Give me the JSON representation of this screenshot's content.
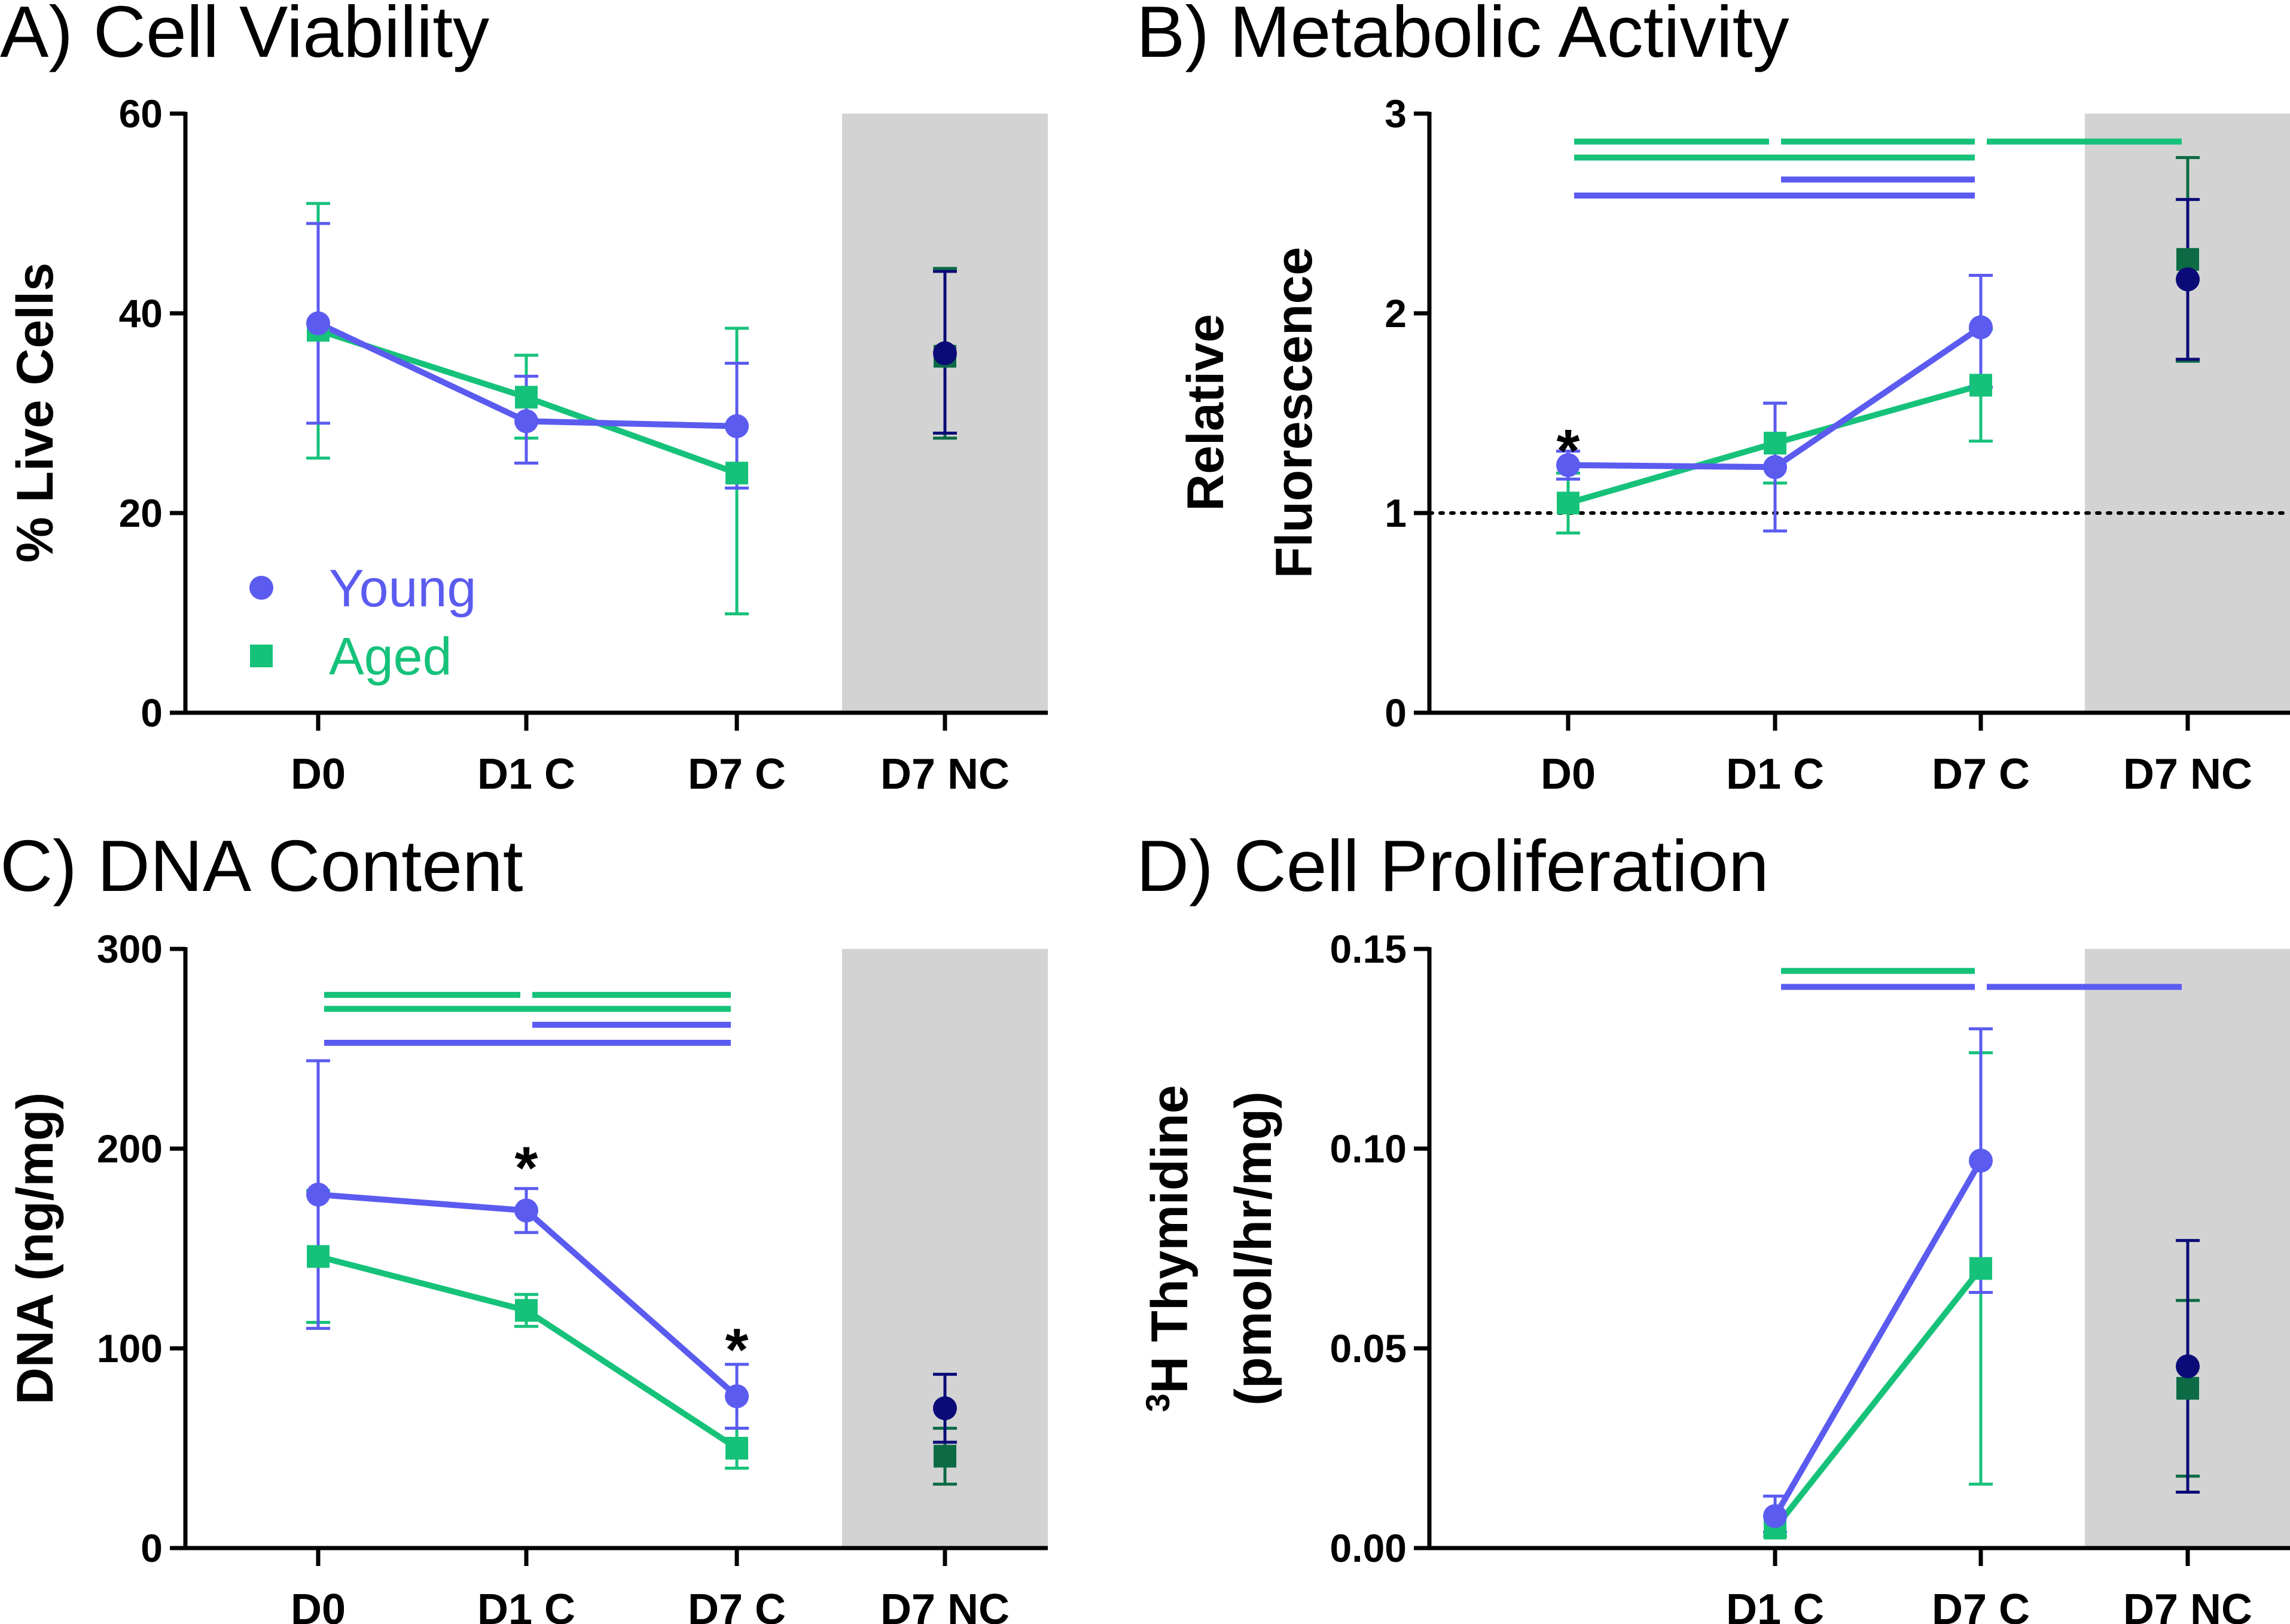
{
  "colors": {
    "young": "#5B5BF0",
    "aged": "#16C27A",
    "young_nc": "#0B0B78",
    "aged_nc": "#0C6B45",
    "shade": "#D3D3D3"
  },
  "chart_data": [
    {
      "type": "line",
      "title": "A) Cell Viability",
      "ylabel": "% Live Cells",
      "ylim": [
        0,
        60
      ],
      "yticks": [
        0,
        20,
        40,
        60
      ],
      "categories": [
        "D0",
        "D1 C",
        "D7 C",
        "D7 NC"
      ],
      "shaded_category": "D7 NC",
      "grid": false,
      "legend": {
        "placement": "bottom-left",
        "entries": [
          "Young",
          "Aged"
        ]
      },
      "series": [
        {
          "name": "Young",
          "marker": "circle",
          "values": [
            39,
            29.2,
            28.7,
            36
          ],
          "err_low": [
            29,
            25,
            22.5,
            28
          ],
          "err_high": [
            49,
            33.7,
            35,
            44.2
          ]
        },
        {
          "name": "Aged",
          "marker": "square",
          "values": [
            38.3,
            31.6,
            24,
            35.7
          ],
          "err_low": [
            25.5,
            27.5,
            9.9,
            27.5
          ],
          "err_high": [
            51,
            35.8,
            38.5,
            44.5
          ]
        }
      ],
      "annotations": [],
      "sig_bars": []
    },
    {
      "type": "line",
      "title": "B) Metabolic Activity",
      "ylabel": "Relative Fluorescence",
      "ylabel_lines": [
        "Relative",
        "Fluorescence"
      ],
      "ylim": [
        0,
        3
      ],
      "yticks": [
        0,
        1,
        2,
        3
      ],
      "categories": [
        "D0",
        "D1 C",
        "D7 C",
        "D7 NC"
      ],
      "shaded_category": "D7 NC",
      "grid": false,
      "reference_line": 1,
      "series": [
        {
          "name": "Young",
          "marker": "circle",
          "values": [
            1.24,
            1.23,
            1.93,
            2.17
          ],
          "err_low": [
            1.17,
            0.91,
            1.63,
            1.77
          ],
          "err_high": [
            1.31,
            1.55,
            2.19,
            2.57
          ]
        },
        {
          "name": "Aged",
          "marker": "square",
          "values": [
            1.05,
            1.35,
            1.64,
            2.27
          ],
          "err_low": [
            0.9,
            1.15,
            1.36,
            1.76
          ],
          "err_high": [
            1.2,
            1.55,
            1.92,
            2.78
          ]
        }
      ],
      "annotations": [
        {
          "text": "*",
          "category": "D0",
          "y": 1.33
        }
      ],
      "sig_bars": [
        {
          "series": "Aged",
          "from": "D0",
          "to": "D1 C",
          "y": 2.86
        },
        {
          "series": "Aged",
          "from": "D1 C",
          "to": "D7 C",
          "y": 2.86
        },
        {
          "series": "Aged",
          "from": "D7 C",
          "to": "D7 NC",
          "y": 2.86
        },
        {
          "series": "Aged",
          "from": "D0",
          "to": "D7 C",
          "y": 2.78
        },
        {
          "series": "Young",
          "from": "D1 C",
          "to": "D7 C",
          "y": 2.67
        },
        {
          "series": "Young",
          "from": "D0",
          "to": "D7 C",
          "y": 2.59
        }
      ]
    },
    {
      "type": "line",
      "title": "C) DNA Content",
      "ylabel": "DNA (ng/mg)",
      "ylim": [
        0,
        300
      ],
      "yticks": [
        0,
        100,
        200,
        300
      ],
      "categories": [
        "D0",
        "D1 C",
        "D7 C",
        "D7 NC"
      ],
      "shaded_category": "D7 NC",
      "grid": false,
      "series": [
        {
          "name": "Young",
          "marker": "circle",
          "values": [
            177,
            169,
            76,
            70
          ],
          "err_low": [
            110,
            158,
            60,
            53
          ],
          "err_high": [
            244,
            180,
            92,
            87
          ]
        },
        {
          "name": "Aged",
          "marker": "square",
          "values": [
            146,
            119,
            50,
            46
          ],
          "err_low": [
            113,
            111,
            40,
            32
          ],
          "err_high": [
            179,
            127,
            60,
            60
          ]
        }
      ],
      "annotations": [
        {
          "text": "*",
          "category": "D1 C",
          "y": 192
        },
        {
          "text": "*",
          "category": "D7 C",
          "y": 101
        }
      ],
      "sig_bars": [
        {
          "series": "Aged",
          "from": "D0",
          "to": "D1 C",
          "y": 277
        },
        {
          "series": "Aged",
          "from": "D1 C",
          "to": "D7 C",
          "y": 277
        },
        {
          "series": "Aged",
          "from": "D0",
          "to": "D7 C",
          "y": 270
        },
        {
          "series": "Young",
          "from": "D1 C",
          "to": "D7 C",
          "y": 262
        },
        {
          "series": "Young",
          "from": "D0",
          "to": "D7 C",
          "y": 253
        }
      ]
    },
    {
      "type": "line",
      "title": "D) Cell Proliferation",
      "ylabel": "3H Thymidine (pmol/hr/mg)",
      "ylabel_lines": [
        "3H Thymidine",
        "(pmol/hr/mg)"
      ],
      "ylabel_superscript": "3",
      "ylabel_rest": "H Thymidine",
      "ylim": [
        0,
        0.15
      ],
      "yticks": [
        0,
        0.05,
        0.1,
        0.15
      ],
      "ytick_labels": [
        "0.00",
        "0.05",
        "0.10",
        "0.15"
      ],
      "categories": [
        "D1 C",
        "D7 C",
        "D7 NC"
      ],
      "shaded_category": "D7 NC",
      "grid": false,
      "series": [
        {
          "name": "Young",
          "marker": "circle",
          "values": [
            0.008,
            0.097,
            0.0455
          ],
          "err_low": [
            0.004,
            0.064,
            0.014
          ],
          "err_high": [
            0.013,
            0.13,
            0.077
          ]
        },
        {
          "name": "Aged",
          "marker": "square",
          "values": [
            0.005,
            0.07,
            0.04
          ],
          "err_low": [
            0.003,
            0.016,
            0.018
          ],
          "err_high": [
            0.008,
            0.124,
            0.062
          ]
        }
      ],
      "annotations": [],
      "sig_bars": [
        {
          "series": "Aged",
          "from": "D1 C",
          "to": "D7 C",
          "y": 0.1445
        },
        {
          "series": "Young",
          "from": "D1 C",
          "to": "D7 C",
          "y": 0.1405
        },
        {
          "series": "Young",
          "from": "D7 C",
          "to": "D7 NC",
          "y": 0.1405
        }
      ]
    }
  ]
}
